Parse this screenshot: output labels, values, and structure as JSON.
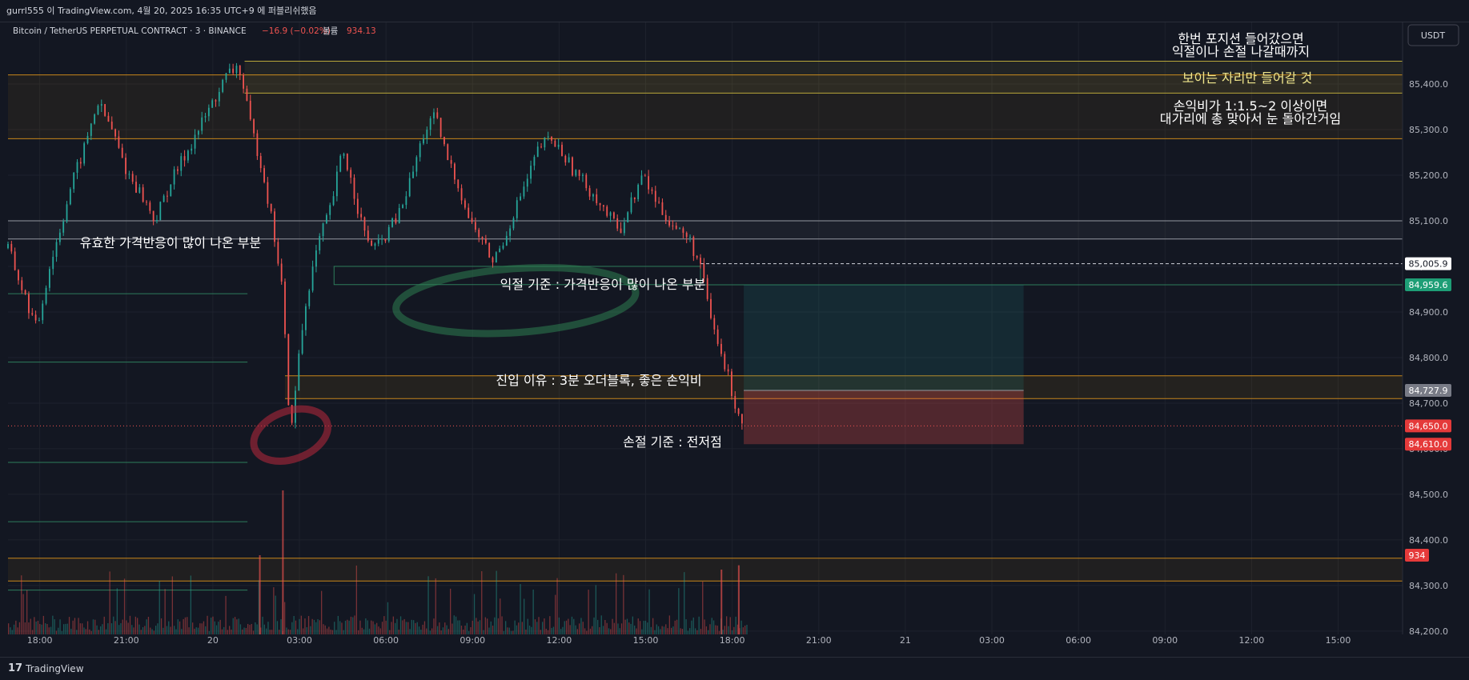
{
  "header": {
    "publish_info": "gurrl555 이 TradingView.com, 4월 20, 2025 16:35 UTC+9 에 퍼블리쉬했음"
  },
  "legend": {
    "symbol": "Bitcoin / TetherUS PERPETUAL CONTRACT · 3 · BINANCE",
    "change": "−16.9 (−0.02%)",
    "volume_label": "볼륨",
    "volume_value": "934.13"
  },
  "currency_button": {
    "label": "USDT"
  },
  "footer": {
    "logo": "17",
    "name": "TradingView"
  },
  "colors": {
    "background": "#131722",
    "up": "#26a69a",
    "down": "#ef5350",
    "zone_orange": "#f7a600",
    "zone_yellow": "#e9d75a",
    "take_profit_fill": "#1c3a3c",
    "stop_loss_fill": "#5c2430"
  },
  "chart_data": {
    "type": "candlestick",
    "symbol": "BTCUSDT.P",
    "timeframe": "3",
    "y_range": [
      84170,
      85500
    ],
    "y_ticks": [
      84200,
      84300,
      84400,
      84500,
      84600,
      84700,
      84800,
      84900,
      85000,
      85100,
      85200,
      85300,
      85400
    ],
    "y_tick_labels": [
      "84,200.0",
      "84,300.0",
      "84,400.0",
      "84,500.0",
      "84,600.0",
      "84,700.0",
      "84,800.0",
      "84,900.0",
      "85,000.0",
      "85,100.0",
      "85,200.0",
      "85,300.0",
      "85,400.0"
    ],
    "x_ticks": [
      {
        "label": "18:00",
        "t": 1.1
      },
      {
        "label": "21:00",
        "t": 4.1
      },
      {
        "label": "20",
        "t": 7.1
      },
      {
        "label": "03:00",
        "t": 10.1
      },
      {
        "label": "06:00",
        "t": 13.1
      },
      {
        "label": "09:00",
        "t": 16.1
      },
      {
        "label": "12:00",
        "t": 19.1
      },
      {
        "label": "15:00",
        "t": 22.1
      },
      {
        "label": "18:00",
        "t": 25.1
      },
      {
        "label": "21:00",
        "t": 28.1
      },
      {
        "label": "21",
        "t": 31.1
      },
      {
        "label": "03:00",
        "t": 34.1
      },
      {
        "label": "06:00",
        "t": 37.1
      },
      {
        "label": "09:00",
        "t": 40.1
      },
      {
        "label": "12:00",
        "t": 43.1
      },
      {
        "label": "15:00",
        "t": 46.1
      }
    ],
    "x_range_hours": [
      0,
      48
    ],
    "price_path": [
      [
        0.0,
        85040
      ],
      [
        0.6,
        84930
      ],
      [
        1.0,
        84860
      ],
      [
        1.4,
        84990
      ],
      [
        1.8,
        85080
      ],
      [
        2.2,
        85180
      ],
      [
        2.6,
        85250
      ],
      [
        3.1,
        85360
      ],
      [
        3.6,
        85300
      ],
      [
        4.1,
        85210
      ],
      [
        4.6,
        85160
      ],
      [
        5.1,
        85100
      ],
      [
        5.6,
        85180
      ],
      [
        6.1,
        85240
      ],
      [
        6.6,
        85300
      ],
      [
        7.1,
        85360
      ],
      [
        7.6,
        85420
      ],
      [
        8.0,
        85440
      ],
      [
        8.4,
        85310
      ],
      [
        8.8,
        85220
      ],
      [
        9.2,
        85080
      ],
      [
        9.5,
        84950
      ],
      [
        9.8,
        84620
      ],
      [
        10.1,
        84820
      ],
      [
        10.4,
        84950
      ],
      [
        10.8,
        85060
      ],
      [
        11.2,
        85130
      ],
      [
        11.6,
        85260
      ],
      [
        12.0,
        85160
      ],
      [
        12.4,
        85060
      ],
      [
        12.8,
        85040
      ],
      [
        13.2,
        85080
      ],
      [
        13.6,
        85120
      ],
      [
        14.0,
        85200
      ],
      [
        14.4,
        85290
      ],
      [
        14.8,
        85330
      ],
      [
        15.2,
        85240
      ],
      [
        15.6,
        85180
      ],
      [
        16.0,
        85100
      ],
      [
        16.4,
        85060
      ],
      [
        16.8,
        85010
      ],
      [
        17.2,
        85060
      ],
      [
        17.6,
        85130
      ],
      [
        18.0,
        85190
      ],
      [
        18.4,
        85260
      ],
      [
        18.8,
        85280
      ],
      [
        19.2,
        85250
      ],
      [
        19.6,
        85210
      ],
      [
        20.0,
        85180
      ],
      [
        20.4,
        85150
      ],
      [
        20.8,
        85110
      ],
      [
        21.2,
        85080
      ],
      [
        21.6,
        85140
      ],
      [
        22.0,
        85200
      ],
      [
        22.4,
        85150
      ],
      [
        22.8,
        85110
      ],
      [
        23.2,
        85080
      ],
      [
        23.6,
        85060
      ],
      [
        24.0,
        85000
      ],
      [
        24.3,
        84900
      ],
      [
        24.6,
        84830
      ],
      [
        24.9,
        84770
      ],
      [
        25.2,
        84700
      ],
      [
        25.5,
        84650
      ]
    ],
    "volume_spikes": [
      {
        "t": 9.5,
        "rel": 1.0
      },
      {
        "t": 8.7,
        "rel": 0.55
      },
      {
        "t": 24.7,
        "rel": 0.45
      },
      {
        "t": 25.3,
        "rel": 0.48
      }
    ],
    "price_labels": [
      {
        "price": 85005.9,
        "label": "85,005.9",
        "style": "current"
      },
      {
        "price": 84959.6,
        "label": "84,959.6",
        "style": "tp"
      },
      {
        "price": 84727.9,
        "label": "84,727.9",
        "style": "entry"
      },
      {
        "price": 84650.0,
        "label": "84,650.0",
        "style": "sl"
      },
      {
        "price": 84610.0,
        "label": "84,610.0",
        "style": "sl"
      }
    ],
    "volume_label": {
      "label": "934",
      "style": "sl"
    },
    "annotations": [
      {
        "text": "한번 포지션 들어갔으면",
        "color": "#ffffff"
      },
      {
        "text": "익절이나 손절 나갈때까지",
        "color": "#ffffff"
      },
      {
        "text": "보이는 자리만 들어갈 것",
        "color": "#f0e68c"
      },
      {
        "text": "손익비가 1:1.5~2 이상이면",
        "color": "#ffffff"
      },
      {
        "text": "대가리에 총 맞아서 눈 돌아간거임",
        "color": "#ffffff"
      },
      {
        "text": "유효한 가격반응이 많이 나온 부분",
        "color": "#ffffff"
      },
      {
        "text": "익절 기준 : 가격반응이 많이 나온 부분",
        "color": "#ffffff"
      },
      {
        "text": "진입 이유 : 3분 오더블록, 좋은 손익비",
        "color": "#ffffff"
      },
      {
        "text": "손절 기준 : 전저점",
        "color": "#ffffff"
      }
    ],
    "zones": [
      {
        "kind": "orange",
        "top": 85420,
        "bottom": 85280
      },
      {
        "kind": "yellow",
        "top": 85450,
        "bottom": 85380
      },
      {
        "kind": "gray",
        "top": 85100,
        "bottom": 85060
      },
      {
        "kind": "orange_entry",
        "top": 84760,
        "bottom": 84710
      },
      {
        "kind": "orange_low",
        "top": 84360,
        "bottom": 84310
      }
    ],
    "position": {
      "entry": 84727.9,
      "take_profit": 84959.6,
      "stop_loss": 84610.0
    }
  }
}
